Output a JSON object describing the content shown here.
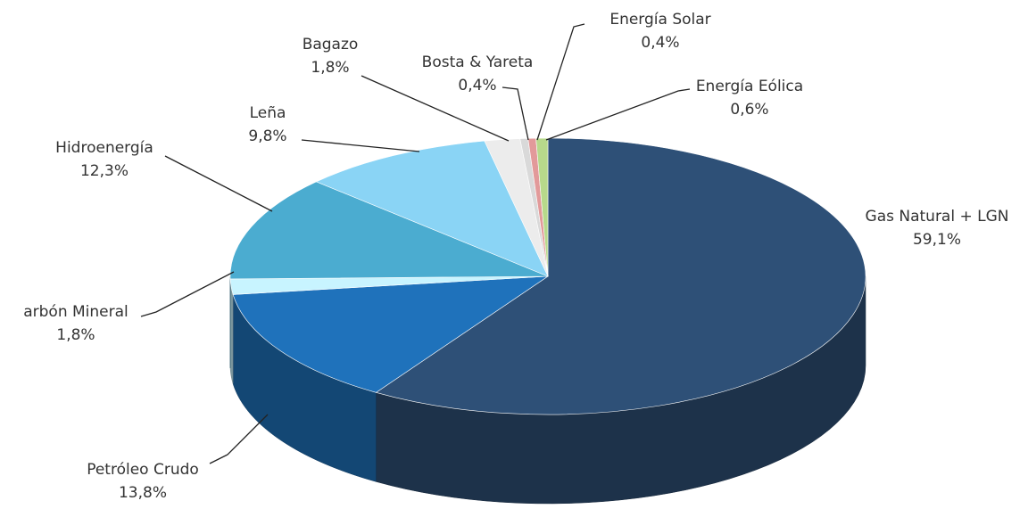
{
  "chart_data": {
    "type": "pie",
    "categories": [
      "Gas Natural + LGN",
      "Petróleo Crudo",
      "arbón Mineral",
      "Hidroenergía",
      "Leña",
      "Bagazo",
      "Bosta & Yareta",
      "Energía Solar",
      "Energía Eólica"
    ],
    "values": [
      59.1,
      13.8,
      1.8,
      12.3,
      9.8,
      1.8,
      0.4,
      0.4,
      0.6
    ],
    "value_labels": [
      "59,1%",
      "13,8%",
      "1,8%",
      "12,3%",
      "9,8%",
      "1,8%",
      "0,4%",
      "0,4%",
      "0,6%"
    ],
    "colors": [
      "#2e5077",
      "#1f72bb",
      "#c8f4ff",
      "#4bacd0",
      "#8ad4f5",
      "#ececec",
      "#d9d9d9",
      "#e29a9a",
      "#b7d98b"
    ]
  }
}
